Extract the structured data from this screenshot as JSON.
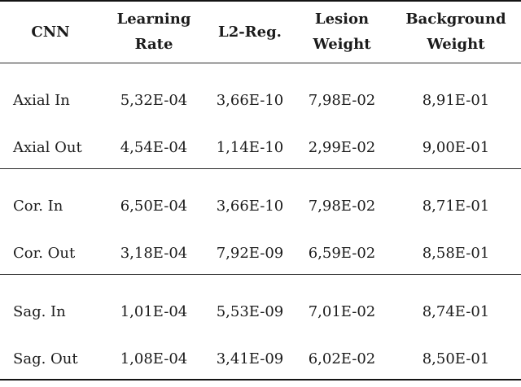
{
  "colors": {
    "background": "#ffffff",
    "text": "#1b1b1b",
    "heavy_rule": "#141414",
    "light_rule": "#2a2a2a"
  },
  "table": {
    "header": {
      "cnn": "CNN",
      "learning_rate": [
        "Learning",
        "Rate"
      ],
      "l2_reg": "L2-Reg.",
      "lesion_weight": [
        "Lesion",
        "Weight"
      ],
      "background_weight": [
        "Background",
        "Weight"
      ]
    },
    "groups": [
      [
        {
          "cnn": "Axial In",
          "learning_rate": "5,32E-04",
          "l2_reg": "3,66E-10",
          "lesion_weight": "7,98E-02",
          "background_weight": "8,91E-01"
        },
        {
          "cnn": "Axial Out",
          "learning_rate": "4,54E-04",
          "l2_reg": "1,14E-10",
          "lesion_weight": "2,99E-02",
          "background_weight": "9,00E-01"
        }
      ],
      [
        {
          "cnn": "Cor. In",
          "learning_rate": "6,50E-04",
          "l2_reg": "3,66E-10",
          "lesion_weight": "7,98E-02",
          "background_weight": "8,71E-01"
        },
        {
          "cnn": "Cor. Out",
          "learning_rate": "3,18E-04",
          "l2_reg": "7,92E-09",
          "lesion_weight": "6,59E-02",
          "background_weight": "8,58E-01"
        }
      ],
      [
        {
          "cnn": "Sag. In",
          "learning_rate": "1,01E-04",
          "l2_reg": "5,53E-09",
          "lesion_weight": "7,01E-02",
          "background_weight": "8,74E-01"
        },
        {
          "cnn": "Sag. Out",
          "learning_rate": "1,08E-04",
          "l2_reg": "3,41E-09",
          "lesion_weight": "6,02E-02",
          "background_weight": "8,50E-01"
        }
      ]
    ]
  }
}
